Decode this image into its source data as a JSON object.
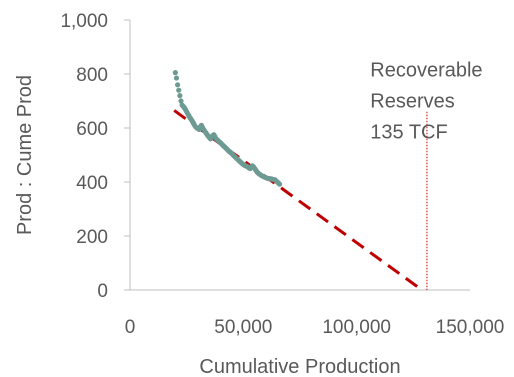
{
  "chart_data": {
    "type": "scatter",
    "xlabel": "Cumulative Production",
    "ylabel": "Prod : Cume Prod",
    "xlim": [
      0,
      150000
    ],
    "ylim": [
      0,
      1000
    ],
    "x_ticks": [
      0,
      50000,
      100000,
      150000
    ],
    "x_tick_labels": [
      "0",
      "50,000",
      "100,000",
      "150,000"
    ],
    "y_ticks": [
      0,
      200,
      400,
      600,
      800,
      1000
    ],
    "y_tick_labels": [
      "0",
      "200",
      "400",
      "600",
      "800",
      "1,000"
    ],
    "grid": false,
    "legend": "none",
    "series": [
      {
        "kind": "scatter",
        "color": "#6d9a92",
        "points": [
          [
            20000,
            805
          ],
          [
            20500,
            785
          ],
          [
            21000,
            760
          ],
          [
            21500,
            740
          ],
          [
            22000,
            720
          ],
          [
            22500,
            700
          ],
          [
            23000,
            685
          ],
          [
            23500,
            680
          ],
          [
            24000,
            675
          ],
          [
            24500,
            668
          ],
          [
            25000,
            660
          ],
          [
            25500,
            652
          ],
          [
            26000,
            645
          ],
          [
            26500,
            638
          ],
          [
            27000,
            632
          ],
          [
            27500,
            625
          ],
          [
            28000,
            618
          ],
          [
            28500,
            610
          ],
          [
            29000,
            604
          ],
          [
            29500,
            600
          ],
          [
            30000,
            598
          ],
          [
            30500,
            595
          ],
          [
            31000,
            604
          ],
          [
            31500,
            610
          ],
          [
            32000,
            602
          ],
          [
            32500,
            594
          ],
          [
            33000,
            588
          ],
          [
            33500,
            582
          ],
          [
            34000,
            576
          ],
          [
            34500,
            570
          ],
          [
            35000,
            565
          ],
          [
            35500,
            560
          ],
          [
            36000,
            566
          ],
          [
            36500,
            572
          ],
          [
            37000,
            575
          ],
          [
            37500,
            568
          ],
          [
            38000,
            560
          ],
          [
            38500,
            556
          ],
          [
            39000,
            552
          ],
          [
            39500,
            548
          ],
          [
            40000,
            545
          ],
          [
            40500,
            540
          ],
          [
            41000,
            536
          ],
          [
            41500,
            532
          ],
          [
            42000,
            528
          ],
          [
            42500,
            524
          ],
          [
            43000,
            520
          ],
          [
            43500,
            515
          ],
          [
            44000,
            512
          ],
          [
            44500,
            508
          ],
          [
            45000,
            505
          ],
          [
            45500,
            500
          ],
          [
            46000,
            496
          ],
          [
            46500,
            492
          ],
          [
            47000,
            488
          ],
          [
            47500,
            484
          ],
          [
            48000,
            480
          ],
          [
            48500,
            476
          ],
          [
            49000,
            472
          ],
          [
            49500,
            468
          ],
          [
            50000,
            465
          ],
          [
            50500,
            462
          ],
          [
            51000,
            460
          ],
          [
            51500,
            458
          ],
          [
            52000,
            456
          ],
          [
            52500,
            452
          ],
          [
            53000,
            450
          ],
          [
            53500,
            455
          ],
          [
            54000,
            460
          ],
          [
            54500,
            456
          ],
          [
            55000,
            450
          ],
          [
            55500,
            444
          ],
          [
            56000,
            438
          ],
          [
            56500,
            433
          ],
          [
            57000,
            430
          ],
          [
            57500,
            427
          ],
          [
            58000,
            424
          ],
          [
            58500,
            422
          ],
          [
            59000,
            420
          ],
          [
            59500,
            418
          ],
          [
            60000,
            416
          ],
          [
            60500,
            414
          ],
          [
            61000,
            413
          ],
          [
            61500,
            412
          ],
          [
            62000,
            412
          ],
          [
            62500,
            411
          ],
          [
            63000,
            410
          ],
          [
            63500,
            409
          ],
          [
            64000,
            408
          ],
          [
            64500,
            404
          ],
          [
            65000,
            400
          ],
          [
            65500,
            396
          ],
          [
            66000,
            392
          ]
        ]
      },
      {
        "kind": "line",
        "style": "dashed",
        "color": "#c00000",
        "points": [
          [
            19500,
            665
          ],
          [
            128000,
            5
          ]
        ]
      },
      {
        "kind": "vertical-line",
        "style": "dotted",
        "color": "#c00000",
        "x": 131000,
        "y_range": [
          0,
          660
        ]
      }
    ],
    "annotations": [
      {
        "lines": [
          "Recoverable",
          "Reserves",
          "135 TCF"
        ],
        "anchor": {
          "x": 106000,
          "y": 790
        }
      }
    ]
  }
}
